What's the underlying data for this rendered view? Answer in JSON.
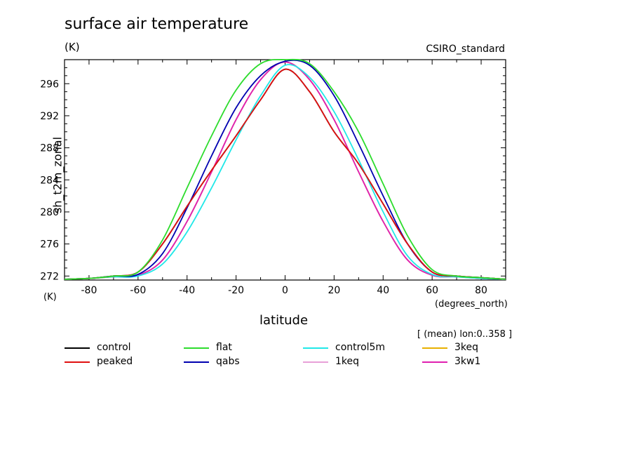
{
  "chart_data": {
    "type": "line",
    "title": "surface air temperature",
    "units": "(K)",
    "model": "CSIRO_standard",
    "ylabel": "sh_t2m_zonal",
    "yunit": "(K)",
    "xlabel": "latitude",
    "xunit": "(degrees_north)",
    "mean_note": "[ (mean) lon:0..358 ]",
    "xlim": [
      -90,
      90
    ],
    "ylim": [
      271.5,
      299
    ],
    "xticks": [
      -80,
      -60,
      -40,
      -20,
      0,
      20,
      40,
      60,
      80
    ],
    "yticks": [
      272,
      276,
      280,
      284,
      288,
      292,
      296
    ],
    "grid": false,
    "legend_position": "bottom",
    "series": [
      {
        "name": "control",
        "color": "#000000",
        "x": [
          -90,
          -80,
          -70,
          -60,
          -50,
          -40,
          -30,
          -20,
          -10,
          0,
          10,
          20,
          30,
          40,
          50,
          60,
          70,
          80,
          90
        ],
        "y": [
          271.6,
          271.7,
          272.0,
          272.5,
          276.0,
          280.7,
          285.2,
          289.5,
          294.0,
          297.8,
          295.0,
          290.0,
          286.0,
          281.0,
          276.0,
          272.5,
          272.0,
          271.8,
          271.6
        ]
      },
      {
        "name": "peaked",
        "color": "#e01010",
        "x": [
          -90,
          -80,
          -70,
          -60,
          -50,
          -40,
          -30,
          -20,
          -10,
          0,
          10,
          20,
          30,
          40,
          50,
          60,
          70,
          80,
          90
        ],
        "y": [
          271.6,
          271.7,
          272.0,
          272.5,
          276.0,
          280.7,
          285.2,
          289.5,
          294.0,
          297.8,
          295.0,
          290.0,
          286.0,
          281.0,
          276.0,
          272.5,
          272.0,
          271.8,
          271.6
        ]
      },
      {
        "name": "flat",
        "color": "#2ddc2d",
        "x": [
          -90,
          -80,
          -70,
          -60,
          -50,
          -40,
          -30,
          -20,
          -10,
          0,
          10,
          20,
          30,
          40,
          50,
          60,
          70,
          80,
          90
        ],
        "y": [
          271.6,
          271.7,
          272.0,
          272.5,
          276.5,
          283.0,
          289.5,
          295.2,
          298.5,
          299.0,
          298.5,
          295.0,
          290.0,
          283.5,
          277.0,
          272.8,
          272.0,
          271.8,
          271.6
        ]
      },
      {
        "name": "qabs",
        "color": "#0000b0",
        "x": [
          -90,
          -80,
          -70,
          -60,
          -50,
          -40,
          -30,
          -20,
          -10,
          0,
          10,
          20,
          30,
          40,
          50,
          60,
          70,
          80,
          90
        ],
        "y": [
          271.6,
          271.7,
          272.0,
          272.2,
          274.8,
          280.5,
          287.0,
          293.0,
          297.0,
          298.8,
          298.3,
          294.5,
          288.5,
          282.0,
          276.0,
          272.5,
          272.0,
          271.8,
          271.6
        ]
      },
      {
        "name": "control5m",
        "color": "#20e8e8",
        "x": [
          -90,
          -80,
          -70,
          -60,
          -50,
          -40,
          -30,
          -20,
          -10,
          0,
          10,
          20,
          30,
          40,
          50,
          60,
          70,
          80,
          90
        ],
        "y": [
          271.6,
          271.7,
          271.9,
          272.0,
          273.5,
          277.5,
          283.0,
          289.0,
          294.5,
          298.3,
          296.8,
          292.5,
          286.5,
          280.0,
          274.5,
          272.2,
          271.9,
          271.7,
          271.6
        ]
      },
      {
        "name": "1keq",
        "color": "#e8a0d8",
        "x": [
          -90,
          -80,
          -70,
          -60,
          -50,
          -40,
          -30,
          -20,
          -10,
          0,
          10,
          20,
          30,
          40,
          50,
          60,
          70,
          80,
          90
        ],
        "y": [
          271.6,
          271.7,
          271.9,
          272.1,
          274.0,
          278.8,
          285.0,
          291.5,
          296.5,
          298.7,
          296.5,
          291.5,
          285.0,
          278.8,
          274.0,
          272.1,
          271.9,
          271.7,
          271.6
        ]
      },
      {
        "name": "3keq",
        "color": "#e8b000",
        "x": [
          -90,
          -80,
          -70,
          -60,
          -50,
          -40,
          -30,
          -20,
          -10,
          0,
          10,
          20,
          30,
          40,
          50,
          60,
          70,
          80,
          90
        ],
        "y": [
          271.6,
          271.7,
          271.9,
          272.1,
          274.0,
          278.8,
          285.0,
          291.5,
          296.5,
          298.7,
          296.5,
          291.5,
          285.0,
          278.8,
          274.0,
          272.1,
          271.9,
          271.7,
          271.6
        ]
      },
      {
        "name": "3kw1",
        "color": "#e020b0",
        "x": [
          -90,
          -80,
          -70,
          -60,
          -50,
          -40,
          -30,
          -20,
          -10,
          0,
          10,
          20,
          30,
          40,
          50,
          60,
          70,
          80,
          90
        ],
        "y": [
          271.6,
          271.7,
          271.9,
          272.1,
          274.0,
          278.8,
          285.0,
          291.5,
          296.5,
          298.7,
          296.5,
          291.5,
          285.0,
          278.8,
          274.0,
          272.1,
          271.9,
          271.7,
          271.6
        ]
      }
    ]
  }
}
